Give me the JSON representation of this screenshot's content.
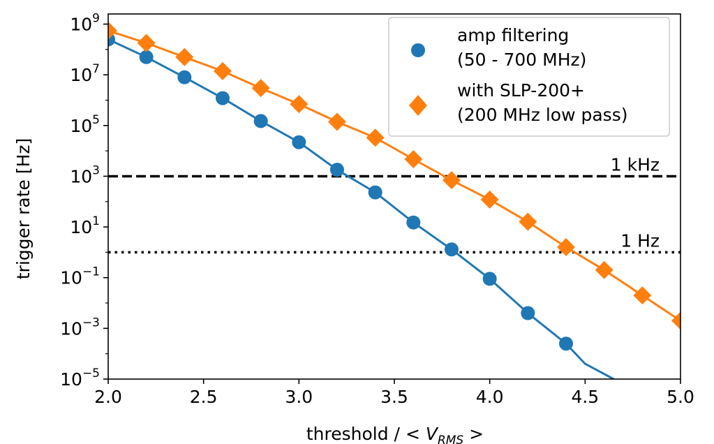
{
  "chart_data": {
    "type": "line",
    "xlabel_prefix": "threshold / ",
    "xlabel_math": "< V",
    "xlabel_sub": "RMS",
    "xlabel_suffix": " >",
    "ylabel": "trigger rate [Hz]",
    "y_scale": "log",
    "xlim": [
      2.0,
      5.0
    ],
    "ylim_log10": [
      -5,
      9.4
    ],
    "x_ticks": [
      "2.0",
      "2.5",
      "3.0",
      "3.5",
      "4.0",
      "4.5",
      "5.0"
    ],
    "y_ticks": [
      {
        "exp": 9,
        "base": "10",
        "sup": "9"
      },
      {
        "exp": 7,
        "base": "10",
        "sup": "7"
      },
      {
        "exp": 5,
        "base": "10",
        "sup": "5"
      },
      {
        "exp": 3,
        "base": "10",
        "sup": "3"
      },
      {
        "exp": 1,
        "base": "10",
        "sup": "1"
      },
      {
        "exp": -1,
        "base": "10",
        "sup": "−1"
      },
      {
        "exp": -3,
        "base": "10",
        "sup": "−3"
      },
      {
        "exp": -5,
        "base": "10",
        "sup": "−5"
      }
    ],
    "series": [
      {
        "name_line1": "amp filtering",
        "name_line2": "(50 - 700 MHz)",
        "color": "#1f77b4",
        "marker": "circle",
        "points": [
          [
            2.0,
            250000000.0
          ],
          [
            2.2,
            50000000.0
          ],
          [
            2.4,
            8000000.0
          ],
          [
            2.6,
            1200000.0
          ],
          [
            2.8,
            150000.0
          ],
          [
            3.0,
            22000.0
          ],
          [
            3.2,
            1800.0
          ],
          [
            3.4,
            230.0
          ],
          [
            3.6,
            15
          ],
          [
            3.8,
            1.3
          ],
          [
            4.0,
            0.09
          ],
          [
            4.2,
            0.004
          ],
          [
            4.4,
            0.00025
          ]
        ],
        "line_extension": [
          [
            4.5,
            4e-05
          ],
          [
            4.65,
            1e-05
          ]
        ]
      },
      {
        "name_line1": "with SLP-200+",
        "name_line2": "(200 MHz low pass)",
        "color": "#ff7f0e",
        "marker": "diamond",
        "points": [
          [
            2.0,
            550000000.0
          ],
          [
            2.2,
            180000000.0
          ],
          [
            2.4,
            50000000.0
          ],
          [
            2.6,
            14000000.0
          ],
          [
            2.8,
            3000000.0
          ],
          [
            3.0,
            700000.0
          ],
          [
            3.2,
            140000.0
          ],
          [
            3.4,
            33000.0
          ],
          [
            3.6,
            4700.0
          ],
          [
            3.8,
            700.0
          ],
          [
            4.0,
            120.0
          ],
          [
            4.2,
            16
          ],
          [
            4.4,
            1.6
          ],
          [
            4.6,
            0.2
          ],
          [
            4.8,
            0.02
          ],
          [
            5.0,
            0.002
          ]
        ],
        "line_extension": []
      }
    ],
    "hlines": [
      {
        "value": 1000,
        "label": "1 kHz",
        "style": "dashed"
      },
      {
        "value": 1,
        "label": "1 Hz",
        "style": "dotted"
      }
    ],
    "grid": false,
    "legend_position": "top-right"
  }
}
